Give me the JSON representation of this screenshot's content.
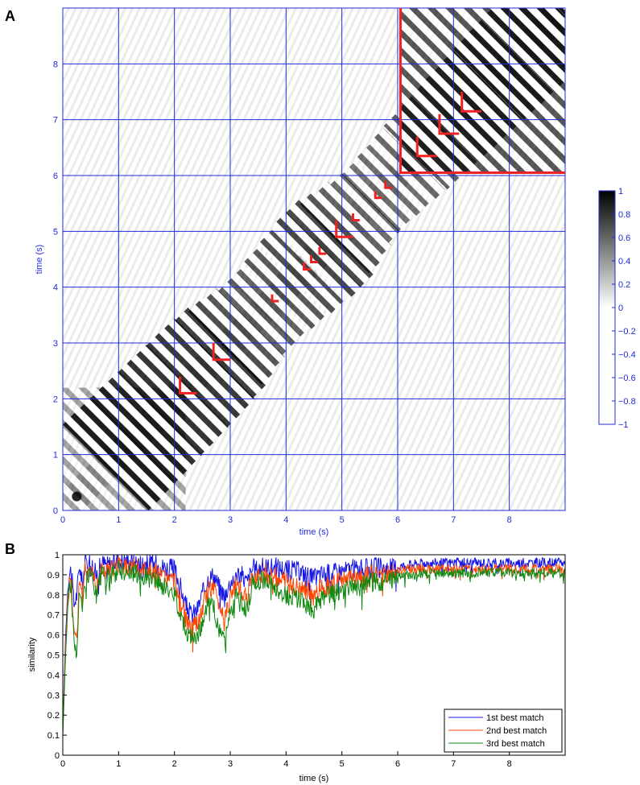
{
  "panel_labels": {
    "a": "A",
    "b": "B"
  },
  "colors": {
    "grid": "#1f2bd6",
    "markers": "#ee2222",
    "series": [
      "#1515e6",
      "#ff4500",
      "#118811"
    ]
  },
  "chart_data": [
    {
      "type": "heatmap",
      "panel": "A",
      "xlabel": "time (s)",
      "ylabel": "time (s)",
      "xlim": [
        0,
        9
      ],
      "ylim": [
        0,
        9
      ],
      "xticks": [
        0,
        1,
        2,
        3,
        4,
        5,
        6,
        7,
        8
      ],
      "yticks": [
        0,
        1,
        2,
        3,
        4,
        5,
        6,
        7,
        8
      ],
      "grid": true,
      "colorbar": {
        "range": [
          -1,
          1
        ],
        "ticks": [
          1,
          0.8,
          0.6,
          0.4,
          0.2,
          0,
          -0.2,
          -0.4,
          -0.6,
          -0.8,
          -1
        ],
        "colormap": "gray (white at -1, black at 1)"
      },
      "diagonal_similarity_strength": [
        {
          "t": 0,
          "v": 0.95
        },
        {
          "t": 2,
          "v": 0.85
        },
        {
          "t": 3,
          "v": 0.55
        },
        {
          "t": 4,
          "v": 0.8
        },
        {
          "t": 5,
          "v": 0.45
        },
        {
          "t": 6,
          "v": 0.6
        },
        {
          "t": 9,
          "v": 0.85
        }
      ],
      "boundary_marker": {
        "x": 6.05,
        "y": 6.05
      },
      "corner_markers": [
        {
          "x": 2.1,
          "y": 2.1,
          "size": 0.3
        },
        {
          "x": 2.7,
          "y": 2.7,
          "size": 0.3
        },
        {
          "x": 3.75,
          "y": 3.75,
          "size": 0.12
        },
        {
          "x": 4.32,
          "y": 4.32,
          "size": 0.12
        },
        {
          "x": 4.45,
          "y": 4.45,
          "size": 0.12
        },
        {
          "x": 4.6,
          "y": 4.6,
          "size": 0.12
        },
        {
          "x": 4.9,
          "y": 4.9,
          "size": 0.3
        },
        {
          "x": 5.2,
          "y": 5.2,
          "size": 0.12
        },
        {
          "x": 5.6,
          "y": 5.6,
          "size": 0.12
        },
        {
          "x": 5.78,
          "y": 5.78,
          "size": 0.12
        },
        {
          "x": 6.35,
          "y": 6.35,
          "size": 0.35
        },
        {
          "x": 6.75,
          "y": 6.75,
          "size": 0.35
        },
        {
          "x": 7.15,
          "y": 7.15,
          "size": 0.35
        }
      ]
    },
    {
      "type": "line",
      "panel": "B",
      "xlabel": "time (s)",
      "ylabel": "similarity",
      "xlim": [
        0,
        9
      ],
      "ylim": [
        0,
        1
      ],
      "xticks": [
        0,
        1,
        2,
        3,
        4,
        5,
        6,
        7,
        8
      ],
      "yticks": [
        0,
        0.1,
        0.2,
        0.3,
        0.4,
        0.5,
        0.6,
        0.7,
        0.8,
        0.9,
        1
      ],
      "grid": false,
      "legend_position": "bottom-right",
      "series": [
        {
          "name": "1st best match",
          "x": [
            0,
            0.05,
            0.1,
            0.15,
            0.2,
            0.25,
            0.3,
            0.35,
            0.4,
            0.5,
            0.6,
            0.7,
            0.8,
            0.9,
            1.0,
            1.1,
            1.2,
            1.4,
            1.6,
            1.8,
            2.0,
            2.1,
            2.2,
            2.3,
            2.4,
            2.5,
            2.6,
            2.7,
            2.8,
            2.9,
            3.0,
            3.1,
            3.2,
            3.3,
            3.4,
            3.5,
            3.6,
            3.8,
            4.0,
            4.2,
            4.4,
            4.5,
            4.6,
            4.8,
            5.0,
            5.2,
            5.4,
            5.6,
            5.8,
            6.0,
            6.2,
            6.5,
            7.0,
            7.5,
            8.0,
            8.5,
            9.0
          ],
          "y": [
            0.12,
            0.6,
            0.88,
            0.93,
            0.75,
            0.8,
            0.95,
            0.85,
            0.96,
            0.97,
            0.9,
            0.96,
            0.95,
            0.96,
            0.98,
            0.97,
            0.97,
            0.96,
            0.96,
            0.94,
            0.93,
            0.85,
            0.75,
            0.7,
            0.72,
            0.8,
            0.88,
            0.9,
            0.84,
            0.8,
            0.86,
            0.91,
            0.9,
            0.86,
            0.93,
            0.93,
            0.94,
            0.94,
            0.93,
            0.92,
            0.9,
            0.88,
            0.9,
            0.91,
            0.92,
            0.93,
            0.93,
            0.94,
            0.93,
            0.94,
            0.95,
            0.96,
            0.96,
            0.96,
            0.96,
            0.96,
            0.96
          ]
        },
        {
          "name": "2nd best match",
          "x": [
            0,
            0.05,
            0.1,
            0.15,
            0.2,
            0.25,
            0.3,
            0.35,
            0.4,
            0.5,
            0.6,
            0.7,
            0.8,
            0.9,
            1.0,
            1.1,
            1.2,
            1.4,
            1.6,
            1.8,
            2.0,
            2.1,
            2.2,
            2.3,
            2.4,
            2.5,
            2.6,
            2.7,
            2.8,
            2.9,
            3.0,
            3.1,
            3.2,
            3.3,
            3.4,
            3.5,
            3.6,
            3.8,
            4.0,
            4.2,
            4.4,
            4.5,
            4.6,
            4.8,
            5.0,
            5.2,
            5.4,
            5.6,
            5.8,
            6.0,
            6.2,
            6.5,
            7.0,
            7.5,
            8.0,
            8.5,
            9.0
          ],
          "y": [
            0.1,
            0.55,
            0.85,
            0.9,
            0.62,
            0.6,
            0.9,
            0.78,
            0.92,
            0.93,
            0.86,
            0.93,
            0.92,
            0.93,
            0.95,
            0.94,
            0.94,
            0.93,
            0.92,
            0.89,
            0.87,
            0.78,
            0.68,
            0.63,
            0.65,
            0.73,
            0.82,
            0.84,
            0.75,
            0.7,
            0.78,
            0.85,
            0.82,
            0.78,
            0.89,
            0.9,
            0.91,
            0.89,
            0.86,
            0.84,
            0.82,
            0.79,
            0.83,
            0.85,
            0.87,
            0.88,
            0.89,
            0.91,
            0.9,
            0.92,
            0.93,
            0.93,
            0.93,
            0.93,
            0.93,
            0.93,
            0.93
          ]
        },
        {
          "name": "3rd best match",
          "x": [
            0,
            0.05,
            0.1,
            0.15,
            0.2,
            0.25,
            0.3,
            0.35,
            0.4,
            0.5,
            0.6,
            0.7,
            0.8,
            0.9,
            1.0,
            1.1,
            1.2,
            1.4,
            1.6,
            1.8,
            2.0,
            2.1,
            2.2,
            2.3,
            2.4,
            2.5,
            2.6,
            2.7,
            2.8,
            2.9,
            3.0,
            3.1,
            3.2,
            3.3,
            3.4,
            3.5,
            3.6,
            3.8,
            4.0,
            4.2,
            4.4,
            4.5,
            4.6,
            4.8,
            5.0,
            5.2,
            5.4,
            5.6,
            5.8,
            6.0,
            6.2,
            6.5,
            7.0,
            7.5,
            8.0,
            8.5,
            9.0
          ],
          "y": [
            0.1,
            0.5,
            0.8,
            0.86,
            0.55,
            0.5,
            0.85,
            0.7,
            0.88,
            0.9,
            0.8,
            0.9,
            0.88,
            0.9,
            0.93,
            0.92,
            0.91,
            0.9,
            0.88,
            0.84,
            0.8,
            0.72,
            0.63,
            0.58,
            0.6,
            0.66,
            0.75,
            0.74,
            0.62,
            0.6,
            0.7,
            0.8,
            0.76,
            0.72,
            0.86,
            0.87,
            0.88,
            0.84,
            0.8,
            0.78,
            0.75,
            0.72,
            0.77,
            0.8,
            0.82,
            0.84,
            0.85,
            0.87,
            0.86,
            0.89,
            0.9,
            0.91,
            0.91,
            0.91,
            0.91,
            0.91,
            0.91
          ]
        }
      ]
    }
  ]
}
